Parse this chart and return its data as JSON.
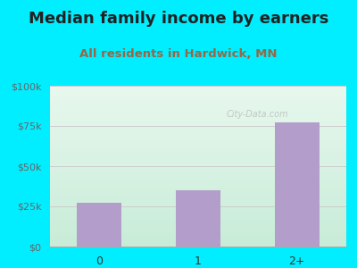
{
  "title": "Median family income by earners",
  "subtitle": "All residents in Hardwick, MN",
  "categories": [
    "0",
    "1",
    "2+"
  ],
  "values": [
    27000,
    35000,
    77000
  ],
  "bar_color": "#b39dca",
  "bg_color": "#00eeff",
  "title_color": "#222222",
  "subtitle_color": "#996644",
  "ytick_labels": [
    "$0",
    "$25k",
    "$50k",
    "$75k",
    "$100k"
  ],
  "ytick_values": [
    0,
    25000,
    50000,
    75000,
    100000
  ],
  "ylim": [
    0,
    100000
  ],
  "title_fontsize": 13,
  "subtitle_fontsize": 9.5,
  "watermark": "City-Data.com",
  "grid_color": "#cccccc",
  "grad_top": "#e8f8ee",
  "grad_bottom": "#c8ecd8"
}
